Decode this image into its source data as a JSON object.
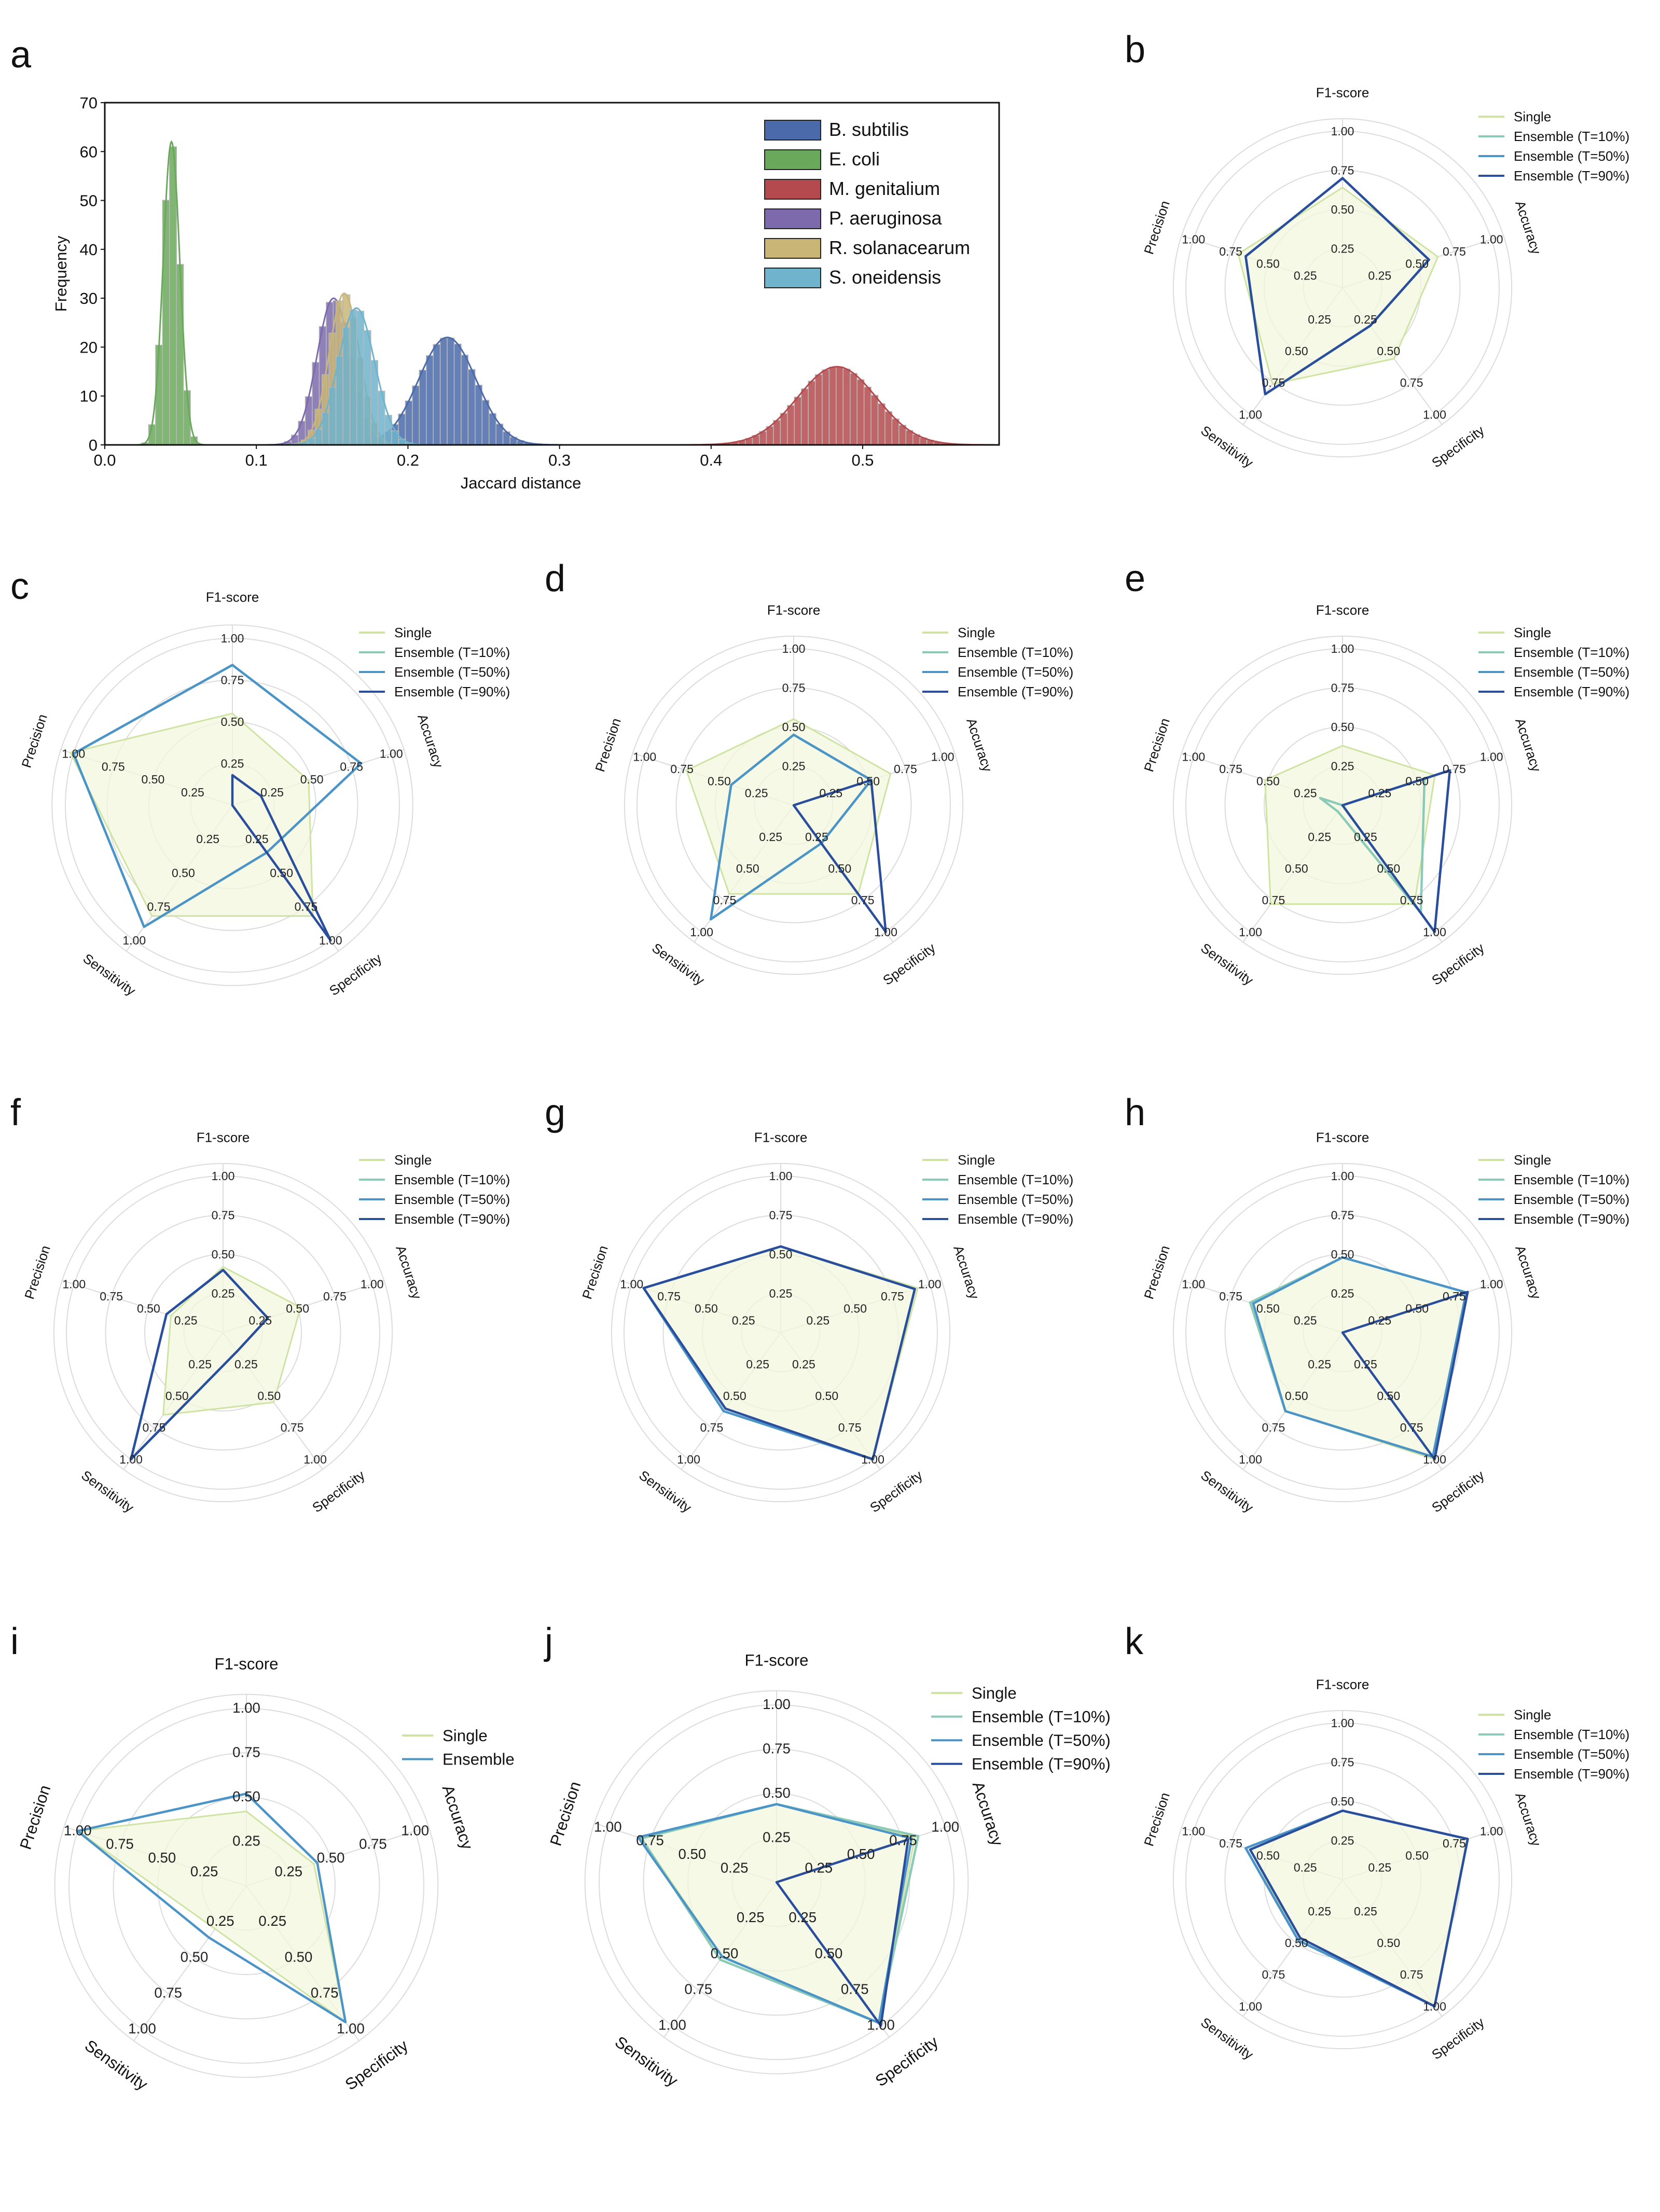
{
  "colors": {
    "single": "#cfe3a2",
    "single_fill": "#f1f7dd",
    "t10": "#8ccab8",
    "t50": "#4b94c8",
    "t90": "#2a4e9c",
    "ensemble": "#4b94c8",
    "ensemble_fill": "#e6f0ea",
    "grid": "#dcdcdc",
    "axis": "#111111"
  },
  "chart_data": [
    {
      "panel": "a",
      "type": "histogram",
      "xlabel": "Jaccard distance",
      "ylabel": "Frequency",
      "xlim": [
        0,
        0.59
      ],
      "ylim": [
        0,
        70
      ],
      "xticks": [
        "0.0",
        "0.1",
        "0.2",
        "0.3",
        "0.4",
        "0.5"
      ],
      "yticks": [
        "0",
        "10",
        "20",
        "30",
        "40",
        "50",
        "60",
        "70"
      ],
      "legend_position": "top-right",
      "series": [
        {
          "name": "B. subtilis",
          "color": "#4a6aaa",
          "mean": 0.226,
          "sd": 0.019,
          "peak": 22
        },
        {
          "name": "E. coli",
          "color": "#6aa85c",
          "mean": 0.044,
          "sd": 0.0055,
          "peak": 62
        },
        {
          "name": "M. genitalium",
          "color": "#b44a4d",
          "mean": 0.483,
          "sd": 0.026,
          "peak": 16
        },
        {
          "name": "P. aeruginosa",
          "color": "#7d6aac",
          "mean": 0.151,
          "sd": 0.011,
          "peak": 30
        },
        {
          "name": "R. solanacearum",
          "color": "#c9b676",
          "mean": 0.158,
          "sd": 0.01,
          "peak": 31
        },
        {
          "name": "S. oneidensis",
          "color": "#6fb3cc",
          "mean": 0.166,
          "sd": 0.012,
          "peak": 28
        }
      ]
    },
    {
      "panel": "b",
      "type": "radar",
      "axes": [
        "F1-score",
        "Accuracy",
        "Specificity",
        "Sensitivity",
        "Precision"
      ],
      "tick_labels": [
        "0.25",
        "0.50",
        "0.75",
        "1.00"
      ],
      "series": [
        {
          "name": "Single",
          "values": [
            0.64,
            0.64,
            0.56,
            0.76,
            0.7
          ]
        },
        {
          "name": "Ensemble (T=10%)",
          "values": [
            0.7,
            0.58,
            0.3,
            0.84,
            0.65
          ]
        },
        {
          "name": "Ensemble (T=50%)",
          "values": [
            0.7,
            0.58,
            0.3,
            0.84,
            0.65
          ]
        },
        {
          "name": "Ensemble (T=90%)",
          "values": [
            0.7,
            0.58,
            0.3,
            0.84,
            0.65
          ]
        }
      ]
    },
    {
      "panel": "c",
      "type": "radar",
      "axes": [
        "F1-score",
        "Accuracy",
        "Specificity",
        "Sensitivity",
        "Precision"
      ],
      "tick_labels": [
        "0.25",
        "0.50",
        "0.75",
        "1.00"
      ],
      "series": [
        {
          "name": "Single",
          "values": [
            0.55,
            0.48,
            0.82,
            0.82,
            1.02
          ]
        },
        {
          "name": "Ensemble (T=10%)",
          "values": [
            0.84,
            0.81,
            0.35,
            0.9,
            1.0
          ]
        },
        {
          "name": "Ensemble (T=50%)",
          "values": [
            0.84,
            0.81,
            0.35,
            0.9,
            1.0
          ]
        },
        {
          "name": "Ensemble (T=90%)",
          "values": [
            0.18,
            0.18,
            1.0,
            0.0,
            0.0
          ]
        }
      ]
    },
    {
      "panel": "d",
      "type": "radar",
      "axes": [
        "F1-score",
        "Accuracy",
        "Specificity",
        "Sensitivity",
        "Precision"
      ],
      "tick_labels": [
        "0.25",
        "0.50",
        "0.75",
        "1.00"
      ],
      "series": [
        {
          "name": "Single",
          "values": [
            0.55,
            0.65,
            0.7,
            0.7,
            0.72
          ]
        },
        {
          "name": "Ensemble (T=10%)",
          "values": [
            0.45,
            0.52,
            0.3,
            0.9,
            0.42
          ]
        },
        {
          "name": "Ensemble (T=50%)",
          "values": [
            0.45,
            0.52,
            0.3,
            0.9,
            0.42
          ]
        },
        {
          "name": "Ensemble (T=90%)",
          "values": [
            0.0,
            0.52,
            1.0,
            0.0,
            0.0
          ]
        }
      ]
    },
    {
      "panel": "e",
      "type": "radar",
      "axes": [
        "F1-score",
        "Accuracy",
        "Specificity",
        "Sensitivity",
        "Precision"
      ],
      "tick_labels": [
        "0.25",
        "0.50",
        "0.75",
        "1.00"
      ],
      "series": [
        {
          "name": "Single",
          "values": [
            0.38,
            0.62,
            0.78,
            0.78,
            0.52
          ]
        },
        {
          "name": "Ensemble (T=10%)",
          "values": [
            0.0,
            0.55,
            0.85,
            0.05,
            0.15
          ]
        },
        {
          "name": "Ensemble (T=50%)",
          "values": [
            0.0,
            0.72,
            1.0,
            0.0,
            0.0
          ]
        },
        {
          "name": "Ensemble (T=90%)",
          "values": [
            0.0,
            0.72,
            1.0,
            0.0,
            0.0
          ]
        }
      ]
    },
    {
      "panel": "f",
      "type": "radar",
      "axes": [
        "F1-score",
        "Accuracy",
        "Specificity",
        "Sensitivity",
        "Precision"
      ],
      "tick_labels": [
        "0.25",
        "0.50",
        "0.75",
        "1.00"
      ],
      "series": [
        {
          "name": "Single",
          "values": [
            0.42,
            0.52,
            0.55,
            0.65,
            0.35
          ]
        },
        {
          "name": "Ensemble (T=10%)",
          "values": [
            0.4,
            0.3,
            0.15,
            1.0,
            0.38
          ]
        },
        {
          "name": "Ensemble (T=50%)",
          "values": [
            0.4,
            0.3,
            0.15,
            1.0,
            0.38
          ]
        },
        {
          "name": "Ensemble (T=90%)",
          "values": [
            0.4,
            0.3,
            0.15,
            1.0,
            0.38
          ]
        }
      ]
    },
    {
      "panel": "g",
      "type": "radar",
      "axes": [
        "F1-score",
        "Accuracy",
        "Specificity",
        "Sensitivity",
        "Precision"
      ],
      "tick_labels": [
        "0.25",
        "0.50",
        "0.75",
        "1.00"
      ],
      "series": [
        {
          "name": "Single",
          "values": [
            0.55,
            0.92,
            1.0,
            0.6,
            0.92
          ]
        },
        {
          "name": "Ensemble (T=10%)",
          "values": [
            0.55,
            0.9,
            1.0,
            0.62,
            0.92
          ]
        },
        {
          "name": "Ensemble (T=50%)",
          "values": [
            0.55,
            0.9,
            1.0,
            0.62,
            0.92
          ]
        },
        {
          "name": "Ensemble (T=90%)",
          "values": [
            0.55,
            0.9,
            1.0,
            0.6,
            0.92
          ]
        }
      ]
    },
    {
      "panel": "h",
      "type": "radar",
      "axes": [
        "F1-score",
        "Accuracy",
        "Specificity",
        "Sensitivity",
        "Precision"
      ],
      "tick_labels": [
        "0.25",
        "0.50",
        "0.75",
        "1.00"
      ],
      "series": [
        {
          "name": "Single",
          "values": [
            0.48,
            0.83,
            1.0,
            0.62,
            0.6
          ]
        },
        {
          "name": "Ensemble (T=10%)",
          "values": [
            0.48,
            0.83,
            0.98,
            0.62,
            0.62
          ]
        },
        {
          "name": "Ensemble (T=50%)",
          "values": [
            0.48,
            0.83,
            0.98,
            0.62,
            0.6
          ]
        },
        {
          "name": "Ensemble (T=90%)",
          "values": [
            0.0,
            0.84,
            1.0,
            0.0,
            0.0
          ]
        }
      ]
    },
    {
      "panel": "i",
      "type": "radar",
      "axes": [
        "F1-score",
        "Accuracy",
        "Specificity",
        "Sensitivity",
        "Precision"
      ],
      "tick_labels": [
        "0.25",
        "0.50",
        "0.75",
        "1.00"
      ],
      "series": [
        {
          "name": "Single",
          "values": [
            0.42,
            0.4,
            0.95,
            0.3,
            1.0
          ]
        },
        {
          "name": "Ensemble",
          "values": [
            0.52,
            0.42,
            0.95,
            0.36,
            1.0
          ]
        }
      ]
    },
    {
      "panel": "j",
      "type": "radar",
      "axes": [
        "F1-score",
        "Accuracy",
        "Specificity",
        "Sensitivity",
        "Precision"
      ],
      "tick_labels": [
        "0.25",
        "0.50",
        "0.75",
        "1.00"
      ],
      "series": [
        {
          "name": "Single",
          "values": [
            0.44,
            0.82,
            0.98,
            0.52,
            0.8
          ]
        },
        {
          "name": "Ensemble (T=10%)",
          "values": [
            0.44,
            0.84,
            0.98,
            0.54,
            0.8
          ]
        },
        {
          "name": "Ensemble (T=50%)",
          "values": [
            0.44,
            0.8,
            0.98,
            0.52,
            0.82
          ]
        },
        {
          "name": "Ensemble (T=90%)",
          "values": [
            0.0,
            0.78,
            1.0,
            0.0,
            0.0
          ]
        }
      ]
    },
    {
      "panel": "k",
      "type": "radar",
      "axes": [
        "F1-score",
        "Accuracy",
        "Specificity",
        "Sensitivity",
        "Precision"
      ],
      "tick_labels": [
        "0.25",
        "0.50",
        "0.75",
        "1.00"
      ],
      "series": [
        {
          "name": "Single",
          "values": [
            0.44,
            0.84,
            1.0,
            0.48,
            0.62
          ]
        },
        {
          "name": "Ensemble (T=10%)",
          "values": [
            0.44,
            0.84,
            1.0,
            0.48,
            0.65
          ]
        },
        {
          "name": "Ensemble (T=50%)",
          "values": [
            0.44,
            0.84,
            1.0,
            0.48,
            0.65
          ]
        },
        {
          "name": "Ensemble (T=90%)",
          "values": [
            0.44,
            0.84,
            1.0,
            0.46,
            0.62
          ]
        }
      ]
    }
  ]
}
